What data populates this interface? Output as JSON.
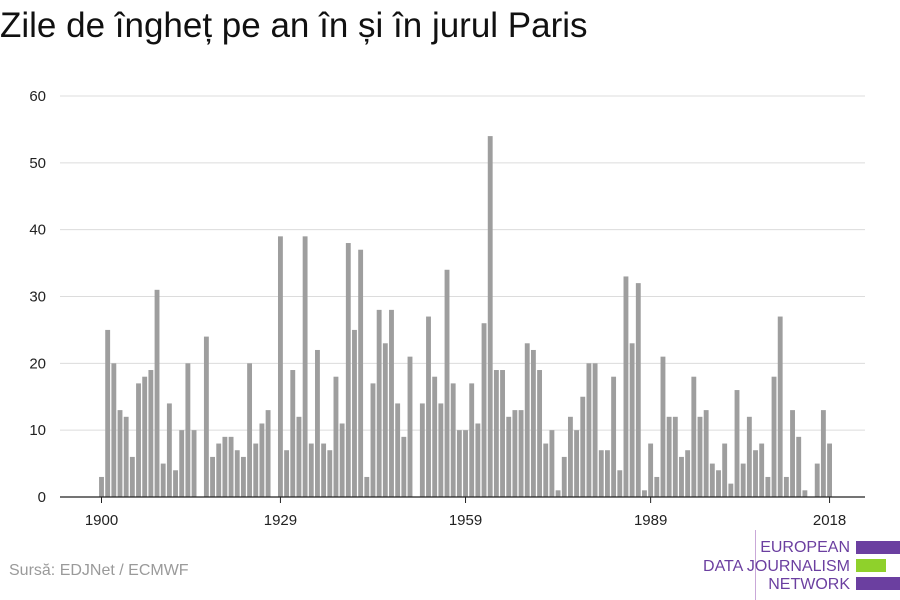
{
  "chart_data": {
    "type": "bar",
    "title": "Zile de îngheț pe an în și în jurul Paris",
    "xlabel": "",
    "ylabel": "",
    "ylim": [
      0,
      60
    ],
    "yticks": [
      0,
      10,
      20,
      30,
      40,
      50,
      60
    ],
    "xticks": [
      1900,
      1929,
      1959,
      1989,
      2018
    ],
    "grid": true,
    "bar_color": "#9e9e9e",
    "series": [
      {
        "x": [
          1900,
          1901,
          1902,
          1903,
          1904,
          1905,
          1906,
          1907,
          1908,
          1909,
          1910,
          1911,
          1912,
          1913,
          1914,
          1915,
          1916,
          1917,
          1918,
          1919,
          1920,
          1921,
          1922,
          1923,
          1924,
          1925,
          1926,
          1927,
          1928,
          1929,
          1930,
          1931,
          1932,
          1933,
          1934,
          1935,
          1936,
          1937,
          1938,
          1939,
          1940,
          1941,
          1942,
          1943,
          1944,
          1945,
          1946,
          1947,
          1948,
          1949,
          1950,
          1951,
          1952,
          1953,
          1954,
          1955,
          1956,
          1957,
          1958,
          1959,
          1960,
          1961,
          1962,
          1963,
          1964,
          1965,
          1966,
          1967,
          1968,
          1969,
          1970,
          1971,
          1972,
          1973,
          1974,
          1975,
          1976,
          1977,
          1978,
          1979,
          1980,
          1981,
          1982,
          1983,
          1984,
          1985,
          1986,
          1987,
          1988,
          1989,
          1990,
          1991,
          1992,
          1993,
          1994,
          1995,
          1996,
          1997,
          1998,
          1999,
          2000,
          2001,
          2002,
          2003,
          2004,
          2005,
          2006,
          2007,
          2008,
          2009,
          2010,
          2011,
          2012,
          2013,
          2014,
          2015,
          2016,
          2017,
          2018
        ],
        "values": [
          3,
          25,
          20,
          13,
          12,
          6,
          17,
          18,
          19,
          31,
          5,
          14,
          4,
          10,
          20,
          10,
          0,
          24,
          6,
          8,
          9,
          9,
          7,
          6,
          20,
          8,
          11,
          13,
          0,
          39,
          7,
          19,
          12,
          39,
          8,
          22,
          8,
          7,
          18,
          11,
          38,
          25,
          37,
          3,
          17,
          28,
          23,
          28,
          14,
          9,
          21,
          0,
          14,
          27,
          18,
          14,
          34,
          17,
          10,
          10,
          17,
          11,
          26,
          54,
          19,
          19,
          12,
          13,
          13,
          23,
          22,
          19,
          8,
          10,
          1,
          6,
          12,
          10,
          15,
          20,
          20,
          7,
          7,
          18,
          4,
          33,
          23,
          32,
          1,
          8,
          3,
          21,
          12,
          12,
          6,
          7,
          18,
          12,
          13,
          5,
          4,
          8,
          2,
          16,
          5,
          12,
          7,
          8,
          3,
          18,
          27,
          3,
          13,
          9,
          1,
          0,
          5,
          13,
          8
        ]
      }
    ]
  },
  "source": "Sursă: EDJNet / ECMWF",
  "logo": {
    "lines": [
      "EUROPEAN",
      "DATA JOURNALISM",
      "NETWORK"
    ],
    "color_primary": "#6b3fa0",
    "color_accent": "#8fd12b"
  }
}
